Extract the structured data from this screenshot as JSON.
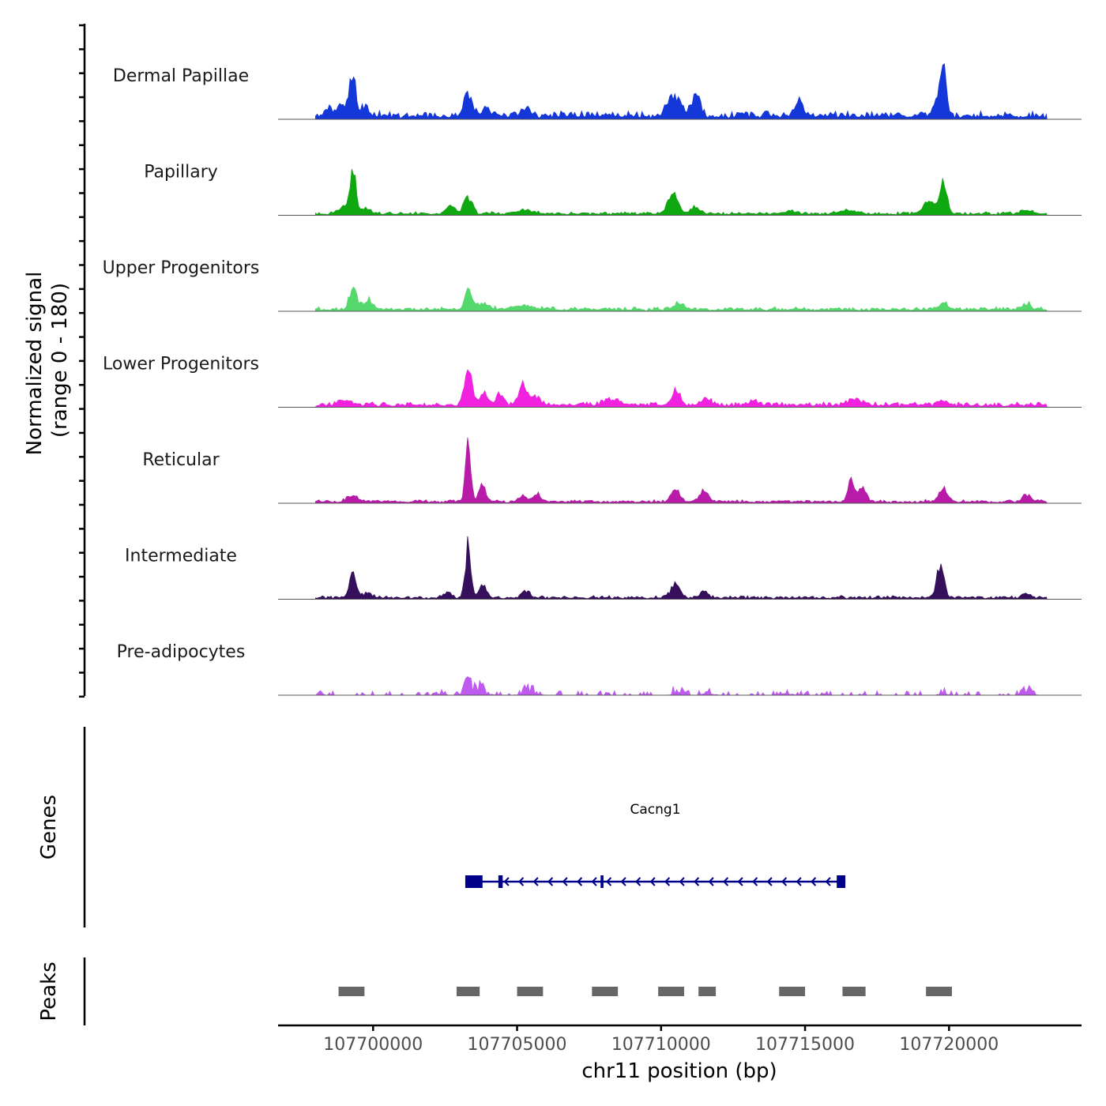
{
  "chart_data": {
    "type": "area",
    "title": "",
    "chromosome": "chr11",
    "xlabel": "chr11 position (bp)",
    "xlim": [
      107696700,
      107724600
    ],
    "data_range": [
      107698000,
      107723400
    ],
    "xticks": [
      107700000,
      107705000,
      107710000,
      107715000,
      107720000
    ],
    "xtick_labels": [
      "107700000",
      "107705000",
      "107710000",
      "107715000",
      "107720000"
    ],
    "ylabel_line1": "Normalized signal",
    "ylabel_line2": "(range 0 - 180)",
    "ylim": [
      0,
      180
    ],
    "tracks": [
      {
        "name": "Dermal Papillae",
        "color": "#1337D8",
        "base": 8,
        "noise": 5,
        "peaks": [
          [
            107698500,
            10,
            0.4
          ],
          [
            107699000,
            15,
            0.4
          ],
          [
            107699300,
            63,
            0.2
          ],
          [
            107699700,
            12,
            0.3
          ],
          [
            107703300,
            32,
            0.3
          ],
          [
            107703900,
            12,
            0.3
          ],
          [
            107705300,
            10,
            0.4
          ],
          [
            107710300,
            22,
            0.3
          ],
          [
            107710600,
            24,
            0.3
          ],
          [
            107711200,
            32,
            0.3
          ],
          [
            107714800,
            20,
            0.3
          ],
          [
            107719600,
            25,
            0.3
          ],
          [
            107719800,
            64,
            0.2
          ]
        ]
      },
      {
        "name": "Papillary",
        "color": "#10A810",
        "base": 3,
        "noise": 3,
        "peaks": [
          [
            107699000,
            10,
            0.4
          ],
          [
            107699300,
            67,
            0.2
          ],
          [
            107699700,
            8,
            0.4
          ],
          [
            107702700,
            12,
            0.3
          ],
          [
            107703300,
            25,
            0.3
          ],
          [
            107705300,
            6,
            0.5
          ],
          [
            107710400,
            32,
            0.35
          ],
          [
            107711200,
            10,
            0.3
          ],
          [
            107714500,
            5,
            0.4
          ],
          [
            107716500,
            5,
            0.5
          ],
          [
            107719300,
            20,
            0.4
          ],
          [
            107719800,
            52,
            0.25
          ],
          [
            107722700,
            5,
            0.4
          ]
        ]
      },
      {
        "name": "Upper Progenitors",
        "color": "#55D86C",
        "base": 4,
        "noise": 3,
        "peaks": [
          [
            107699300,
            33,
            0.25
          ],
          [
            107699800,
            15,
            0.3
          ],
          [
            107703300,
            33,
            0.25
          ],
          [
            107703800,
            8,
            0.5
          ],
          [
            107705200,
            6,
            0.8
          ],
          [
            107710600,
            8,
            0.4
          ],
          [
            107719800,
            12,
            0.3
          ],
          [
            107722700,
            8,
            0.3
          ]
        ]
      },
      {
        "name": "Lower Progenitors",
        "color": "#F022E0",
        "base": 5,
        "noise": 4,
        "peaks": [
          [
            107699000,
            6,
            0.5
          ],
          [
            107703300,
            62,
            0.25
          ],
          [
            107703800,
            18,
            0.3
          ],
          [
            107704400,
            15,
            0.3
          ],
          [
            107705200,
            28,
            0.3
          ],
          [
            107705600,
            12,
            0.4
          ],
          [
            107708300,
            8,
            0.5
          ],
          [
            107710500,
            22,
            0.3
          ],
          [
            107711600,
            10,
            0.3
          ],
          [
            107713200,
            5,
            0.5
          ],
          [
            107716700,
            10,
            0.4
          ],
          [
            107719800,
            8,
            0.3
          ]
        ]
      },
      {
        "name": "Reticular",
        "color": "#B81BA8",
        "base": 3,
        "noise": 3,
        "peaks": [
          [
            107699300,
            8,
            0.4
          ],
          [
            107703300,
            105,
            0.18
          ],
          [
            107703800,
            25,
            0.25
          ],
          [
            107705200,
            10,
            0.3
          ],
          [
            107705700,
            12,
            0.25
          ],
          [
            107710500,
            20,
            0.3
          ],
          [
            107711500,
            18,
            0.3
          ],
          [
            107716600,
            32,
            0.25
          ],
          [
            107717000,
            22,
            0.25
          ],
          [
            107719800,
            20,
            0.3
          ],
          [
            107722700,
            12,
            0.25
          ]
        ]
      },
      {
        "name": "Intermediate",
        "color": "#360F5C",
        "base": 3,
        "noise": 3,
        "peaks": [
          [
            107699300,
            35,
            0.25
          ],
          [
            107699800,
            8,
            0.3
          ],
          [
            107702600,
            10,
            0.25
          ],
          [
            107703300,
            80,
            0.2
          ],
          [
            107703800,
            20,
            0.25
          ],
          [
            107705300,
            10,
            0.3
          ],
          [
            107710500,
            22,
            0.3
          ],
          [
            107711500,
            8,
            0.3
          ],
          [
            107719700,
            50,
            0.25
          ],
          [
            107722700,
            5,
            0.3
          ]
        ]
      },
      {
        "name": "Pre-adipocytes",
        "color": "#BF5AF0",
        "base": 0,
        "noise": 4,
        "sparse": true,
        "peaks": [
          [
            107698200,
            14,
            0.12
          ],
          [
            107702400,
            10,
            0.15
          ],
          [
            107703300,
            22,
            0.3
          ],
          [
            107703700,
            14,
            0.4
          ],
          [
            107705400,
            14,
            0.4
          ],
          [
            107710600,
            14,
            0.3
          ],
          [
            107711600,
            10,
            0.3
          ],
          [
            107714300,
            8,
            0.3
          ],
          [
            107719800,
            10,
            0.2
          ],
          [
            107722700,
            14,
            0.3
          ]
        ]
      }
    ],
    "genes": [
      {
        "name": "Cacng1",
        "start": 107703200,
        "end": 107716400,
        "strand": "-",
        "exons": [
          [
            107703200,
            107703800
          ],
          [
            107704350,
            107704500
          ],
          [
            107707900,
            107708000
          ],
          [
            107716100,
            107716400
          ]
        ]
      }
    ],
    "genes_track_label": "Genes",
    "peaks_track_label": "Peaks",
    "peak_regions": [
      [
        107698800,
        107699700
      ],
      [
        107702900,
        107703700
      ],
      [
        107705000,
        107705900
      ],
      [
        107707600,
        107708500
      ],
      [
        107709900,
        107710800
      ],
      [
        107711300,
        107711900
      ],
      [
        107714100,
        107715000
      ],
      [
        107716300,
        107717100
      ],
      [
        107719200,
        107720100
      ]
    ],
    "colors": {
      "axis": "#000000",
      "baseline": "#555555",
      "gene": "#00008B",
      "peak": "#666666",
      "tick_text": "#4D4D4D",
      "text": "#1A1A1A"
    }
  }
}
